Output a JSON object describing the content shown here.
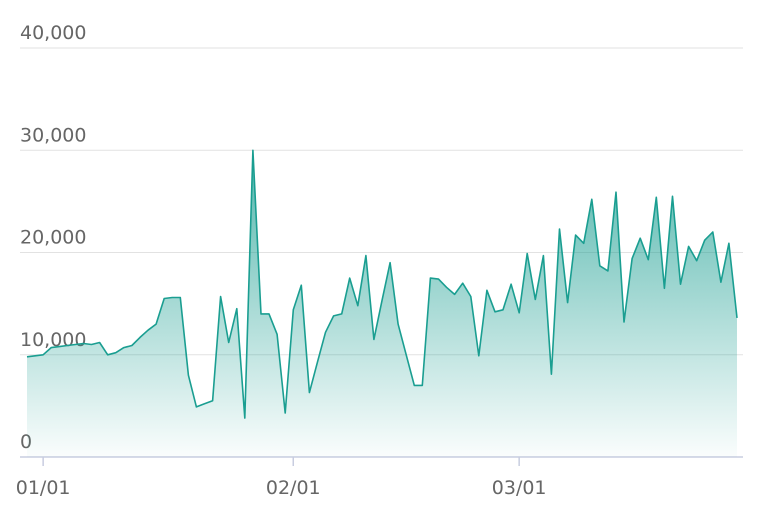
{
  "chart_data": {
    "type": "area",
    "categories": [
      "12/30",
      "12/31",
      "01/01",
      "01/02",
      "01/03",
      "01/04",
      "01/05",
      "01/06",
      "01/07",
      "01/08",
      "01/09",
      "01/10",
      "01/11",
      "01/12",
      "01/13",
      "01/14",
      "01/15",
      "01/16",
      "01/17",
      "01/18",
      "01/19",
      "01/20",
      "01/21",
      "01/22",
      "01/23",
      "01/24",
      "01/25",
      "01/26",
      "01/27",
      "01/28",
      "01/29",
      "01/30",
      "01/31",
      "02/01",
      "02/02",
      "02/03",
      "02/04",
      "02/05",
      "02/06",
      "02/07",
      "02/08",
      "02/09",
      "02/10",
      "02/11",
      "02/12",
      "02/13",
      "02/14",
      "02/15",
      "02/16",
      "02/17",
      "02/18",
      "02/19",
      "02/20",
      "02/21",
      "02/22",
      "02/23",
      "02/24",
      "02/25",
      "02/26",
      "02/27",
      "02/28",
      "03/01",
      "03/02",
      "03/03",
      "03/04",
      "03/05",
      "03/06",
      "03/07",
      "03/08",
      "03/09",
      "03/10",
      "03/11",
      "03/12",
      "03/13",
      "03/14",
      "03/15",
      "03/16",
      "03/17",
      "03/18",
      "03/19",
      "03/20",
      "03/21",
      "03/22",
      "03/23",
      "03/24",
      "03/25",
      "03/26",
      "03/27",
      "03/28"
    ],
    "values": [
      9800,
      9900,
      10000,
      10700,
      10800,
      10900,
      11000,
      11100,
      11000,
      11200,
      10000,
      10200,
      10700,
      10900,
      11700,
      12400,
      13000,
      15500,
      15600,
      15600,
      8000,
      4900,
      5200,
      5500,
      15700,
      11200,
      14500,
      3800,
      30000,
      14000,
      14000,
      12000,
      4300,
      14400,
      16800,
      6300,
      9300,
      12200,
      13800,
      14000,
      17500,
      14800,
      19700,
      11500,
      15300,
      19000,
      13000,
      10000,
      7000,
      7000,
      17500,
      17400,
      16600,
      15900,
      17000,
      15700,
      9900,
      16300,
      14200,
      14400,
      16900,
      14100,
      19900,
      15400,
      19700,
      8100,
      22300,
      15100,
      21700,
      20900,
      25200,
      18700,
      18200,
      25900,
      13200,
      19400,
      21400,
      19300,
      25400,
      16500,
      25500,
      16900,
      20600,
      19200,
      21200,
      22000,
      17100,
      20900,
      13600
    ],
    "color": "#1a9e91",
    "xticks": [
      "01/01",
      "02/01",
      "03/01"
    ],
    "ylim": [
      0,
      40000
    ],
    "yticks": [
      0,
      {
        "value": 10000,
        "label": "10,000"
      },
      {
        "value": 20000,
        "label": "20,000"
      },
      {
        "value": 30000,
        "label": "30,000"
      },
      {
        "value": 40000,
        "label": "40,000"
      }
    ],
    "grid": true
  }
}
